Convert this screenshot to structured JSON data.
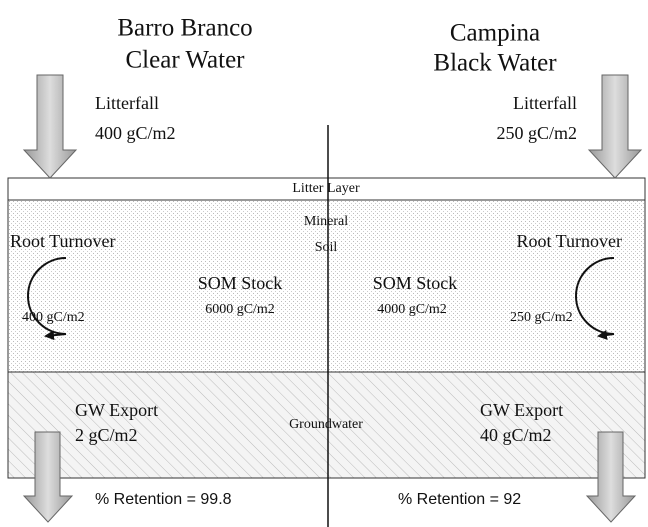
{
  "left": {
    "site": "Barro Branco",
    "water": "Clear Water",
    "litterfall_label": "Litterfall",
    "litterfall_value": "400 gC/m2",
    "root_label": "Root Turnover",
    "root_value": "400 gC/m2",
    "som_label": "SOM Stock",
    "som_value": "6000 gC/m2",
    "gw_label": "GW Export",
    "gw_value": "2 gC/m2",
    "retention": "% Retention = 99.8"
  },
  "right": {
    "site": "Campina",
    "water": "Black Water",
    "litterfall_label": "Litterfall",
    "litterfall_value": "250 gC/m2",
    "root_label": "Root Turnover",
    "root_value": "250 gC/m2",
    "som_label": "SOM Stock",
    "som_value": "4000 gC/m2",
    "gw_label": "GW Export",
    "gw_value": "40 gC/m2",
    "retention": "% Retention = 92"
  },
  "layers": {
    "litter": "Litter Layer",
    "mineral_1": "Mineral",
    "mineral_2": "Soil",
    "groundwater": "Groundwater"
  }
}
